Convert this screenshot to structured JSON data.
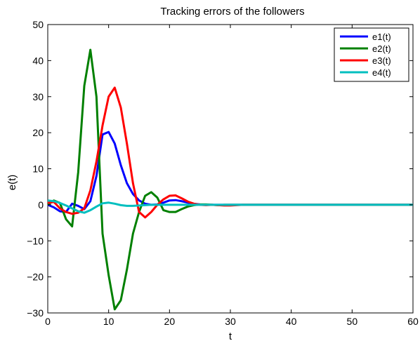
{
  "chart_data": {
    "type": "line",
    "title": "Tracking errors of the followers",
    "xlabel": "t",
    "ylabel": "e(t)",
    "xlim": [
      0,
      60
    ],
    "ylim": [
      -30,
      50
    ],
    "xticks": [
      "0",
      "10",
      "20",
      "30",
      "40",
      "50",
      "60"
    ],
    "yticks": [
      "−30",
      "−20",
      "−10",
      "0",
      "10",
      "20",
      "30",
      "40",
      "50"
    ],
    "grid": false,
    "legend_position": "top-right",
    "x": [
      0,
      1,
      2,
      3,
      4,
      5,
      6,
      7,
      8,
      9,
      10,
      11,
      12,
      13,
      14,
      15,
      16,
      17,
      18,
      19,
      20,
      21,
      22,
      23,
      24,
      25,
      26,
      27,
      28,
      29,
      30,
      31,
      32,
      33,
      34,
      35,
      36,
      37,
      38,
      39,
      40,
      41,
      42,
      43,
      44,
      45,
      46,
      47,
      48,
      49,
      50,
      51,
      52,
      53,
      54,
      55,
      56,
      57,
      58,
      59,
      60
    ],
    "series": [
      {
        "name": "e1(t)",
        "color": "#0000ff",
        "values": [
          0,
          -0.7,
          -1.8,
          -2,
          0.3,
          -0.3,
          -1.2,
          1,
          8,
          19.5,
          20.2,
          17,
          11,
          6,
          3,
          1.2,
          0.3,
          0,
          0.1,
          0.6,
          1.2,
          1.3,
          1,
          0.6,
          0.3,
          0.1,
          0,
          0,
          0,
          0,
          0,
          0,
          0,
          0,
          0,
          0,
          0,
          0,
          0,
          0,
          0,
          0,
          0,
          0,
          0,
          0,
          0,
          0,
          0,
          0,
          0,
          0,
          0,
          0,
          0,
          0,
          0,
          0,
          0,
          0,
          0
        ]
      },
      {
        "name": "e2(t)",
        "color": "#008000",
        "values": [
          0,
          1.2,
          0.5,
          -4,
          -6,
          9,
          33,
          43,
          30,
          -8,
          -19.5,
          -29,
          -26.5,
          -18,
          -8,
          -2,
          2.5,
          3.5,
          2,
          -1.5,
          -2,
          -2,
          -1.2,
          -0.5,
          -0.1,
          0.1,
          0.1,
          0,
          -0.1,
          0,
          0,
          0,
          0,
          0,
          0,
          0,
          0,
          0,
          0,
          0,
          0,
          0,
          0,
          0,
          0,
          0,
          0,
          0,
          0,
          0,
          0,
          0,
          0,
          0,
          0,
          0,
          0,
          0,
          0,
          0,
          0
        ]
      },
      {
        "name": "e3(t)",
        "color": "#ff0000",
        "values": [
          0.5,
          0.8,
          -1,
          -2,
          -2.5,
          -2.2,
          -1,
          4,
          12,
          22,
          30,
          32.5,
          27,
          17,
          6,
          -2,
          -3.5,
          -2,
          0,
          1.5,
          2.5,
          2.6,
          1.8,
          0.9,
          0.3,
          0,
          -0.1,
          0,
          -0.1,
          -0.2,
          -0.2,
          -0.1,
          0,
          0,
          0,
          0,
          0,
          0,
          0,
          0,
          0,
          0,
          0,
          0,
          0,
          0,
          0,
          0,
          0,
          0,
          0,
          0,
          0,
          0,
          0,
          0,
          0,
          0,
          0,
          0,
          0
        ]
      },
      {
        "name": "e4(t)",
        "color": "#00bfbf",
        "values": [
          1.2,
          1,
          0.5,
          -0.2,
          -1,
          -1.8,
          -2.2,
          -1.5,
          -0.5,
          0.4,
          0.6,
          0.3,
          -0.1,
          -0.3,
          -0.3,
          -0.2,
          -0.1,
          0,
          0,
          0,
          0,
          0,
          0,
          0,
          0,
          0,
          0,
          0,
          0,
          0,
          0,
          0,
          0,
          0,
          0,
          0,
          0,
          0,
          0,
          0,
          0,
          0,
          0,
          0,
          0,
          0,
          0,
          0,
          0,
          0,
          0,
          0,
          0,
          0,
          0,
          0,
          0,
          0,
          0,
          0,
          0
        ]
      }
    ]
  }
}
